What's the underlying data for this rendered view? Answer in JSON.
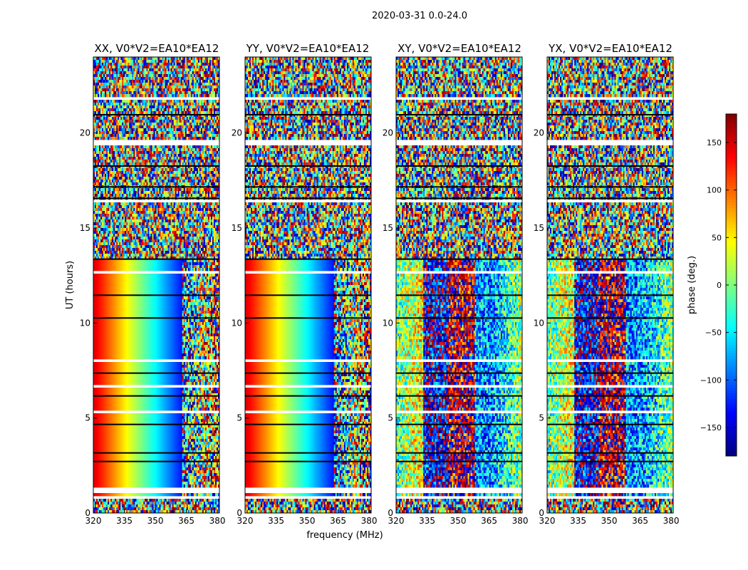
{
  "figure_title": "2020-03-31 0.0-24.0",
  "colormap": [
    "#00007f",
    "#0000ff",
    "#007fff",
    "#00ffff",
    "#7fff7f",
    "#ffff00",
    "#ff7f00",
    "#ff0000",
    "#7f0000"
  ],
  "chart_data": [
    {
      "type": "heatmap",
      "title": "XX, V0*V2=EA10*EA12",
      "xlabel": "",
      "ylabel": "UT (hours)",
      "xlim": [
        320,
        381
      ],
      "ylim": [
        0,
        24
      ],
      "xticks": [
        "320",
        "335",
        "350",
        "365",
        "380"
      ],
      "yticks": [
        "0",
        "5",
        "10",
        "15",
        "20"
      ],
      "value": "phase (deg.)",
      "pattern": "parallel"
    },
    {
      "type": "heatmap",
      "title": "YY, V0*V2=EA10*EA12",
      "xlabel": "frequency (MHz)",
      "ylabel": "",
      "xlim": [
        320,
        381
      ],
      "ylim": [
        0,
        24
      ],
      "xticks": [
        "320",
        "335",
        "350",
        "365",
        "380"
      ],
      "yticks": [
        "0",
        "5",
        "10",
        "15",
        "20"
      ],
      "value": "phase (deg.)",
      "pattern": "parallel"
    },
    {
      "type": "heatmap",
      "title": "XY, V0*V2=EA10*EA12",
      "xlabel": "",
      "ylabel": "",
      "xlim": [
        320,
        381
      ],
      "ylim": [
        0,
        24
      ],
      "xticks": [
        "320",
        "335",
        "350",
        "365",
        "380"
      ],
      "yticks": [
        "0",
        "5",
        "10",
        "15",
        "20"
      ],
      "value": "phase (deg.)",
      "pattern": "cross"
    },
    {
      "type": "heatmap",
      "title": "YX, V0*V2=EA10*EA12",
      "xlabel": "",
      "ylabel": "",
      "xlim": [
        320,
        381
      ],
      "ylim": [
        0,
        24
      ],
      "xticks": [
        "320",
        "335",
        "350",
        "365",
        "380"
      ],
      "yticks": [
        "0",
        "5",
        "10",
        "15",
        "20"
      ],
      "value": "phase (deg.)",
      "pattern": "cross"
    }
  ],
  "colorbar": {
    "label": "phase (deg.)",
    "range": [
      -180,
      180
    ],
    "ticks": [
      -150,
      -100,
      -50,
      0,
      50,
      100,
      150
    ],
    "tick_labels": [
      "−150",
      "−100",
      "−50",
      "0",
      "50",
      "100",
      "150"
    ]
  }
}
